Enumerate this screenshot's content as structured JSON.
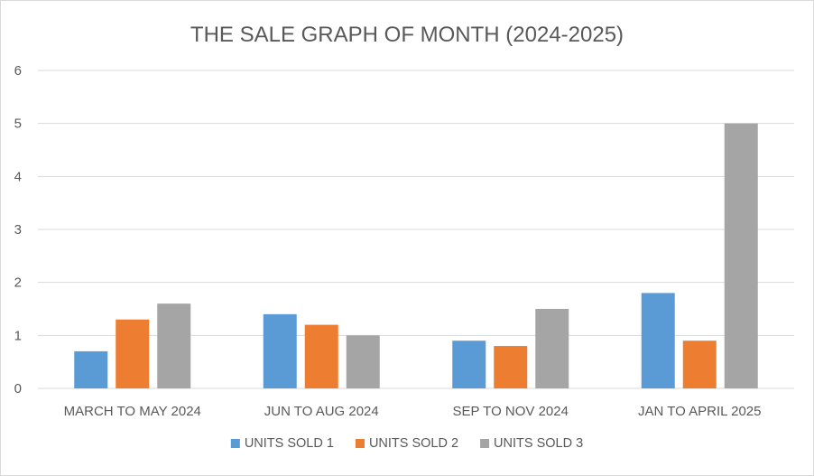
{
  "chart_data": {
    "type": "bar",
    "title": "THE SALE GRAPH OF MONTH (2024-2025)",
    "categories": [
      "MARCH TO MAY 2024",
      "JUN TO AUG 2024",
      "SEP TO NOV 2024",
      "JAN TO APRIL 2025"
    ],
    "series": [
      {
        "name": "UNITS SOLD 1",
        "color": "#5b9bd5",
        "values": [
          0.7,
          1.4,
          0.9,
          1.8
        ]
      },
      {
        "name": "UNITS SOLD  2",
        "color": "#ed7d31",
        "values": [
          1.3,
          1.2,
          0.8,
          0.9
        ]
      },
      {
        "name": "UNITS SOLD 3",
        "color": "#a5a5a5",
        "values": [
          1.6,
          1.0,
          1.5,
          5.0
        ]
      }
    ],
    "ylim": [
      0,
      6
    ],
    "yticks": [
      0,
      1,
      2,
      3,
      4,
      5,
      6
    ],
    "grid": true,
    "legend": "bottom"
  }
}
